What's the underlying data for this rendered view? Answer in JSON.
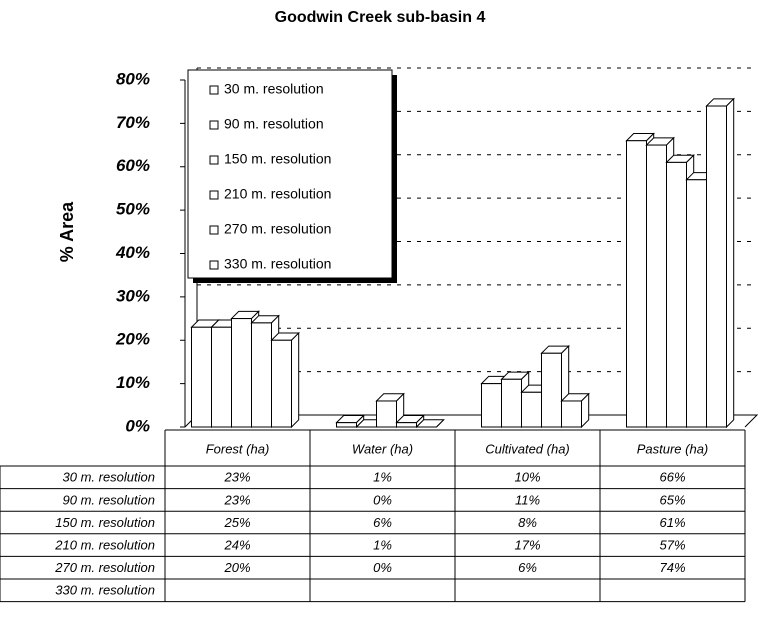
{
  "chart_data": {
    "type": "bar",
    "title": "Goodwin Creek sub-basin 4",
    "y_label": "% Area",
    "categories": [
      "Forest (ha)",
      "Water (ha)",
      "Cultivated (ha)",
      "Pasture (ha)"
    ],
    "series": [
      {
        "name": "30 m. resolution",
        "color": "#ffffff",
        "values": [
          23,
          1,
          10,
          66
        ],
        "value_labels": [
          "23%",
          "1%",
          "10%",
          "66%"
        ]
      },
      {
        "name": "90 m. resolution",
        "color": "#ffffff",
        "values": [
          23,
          0,
          11,
          65
        ],
        "value_labels": [
          "23%",
          "0%",
          "11%",
          "65%"
        ]
      },
      {
        "name": "150 m. resolution",
        "color": "#ffffff",
        "values": [
          25,
          6,
          8,
          61
        ],
        "value_labels": [
          "25%",
          "6%",
          "8%",
          "61%"
        ]
      },
      {
        "name": "210 m. resolution",
        "color": "#ffffff",
        "values": [
          24,
          1,
          17,
          57
        ],
        "value_labels": [
          "24%",
          "1%",
          "17%",
          "57%"
        ]
      },
      {
        "name": "270 m. resolution",
        "color": "#ffffff",
        "values": [
          20,
          0,
          6,
          74
        ],
        "value_labels": [
          "20%",
          "0%",
          "6%",
          "74%"
        ]
      },
      {
        "name": "330 m. resolution",
        "color": "#ffffff",
        "values": [
          null,
          null,
          null,
          null
        ],
        "value_labels": [
          null,
          null,
          null,
          null
        ]
      }
    ],
    "ylim": [
      0,
      80
    ],
    "yticks": [
      {
        "value": 0,
        "label": "0%"
      },
      {
        "value": 10,
        "label": "10%"
      },
      {
        "value": 20,
        "label": "20%"
      },
      {
        "value": 30,
        "label": "30%"
      },
      {
        "value": 40,
        "label": "40%"
      },
      {
        "value": 50,
        "label": "50%"
      },
      {
        "value": 60,
        "label": "60%"
      },
      {
        "value": 70,
        "label": "70%"
      },
      {
        "value": 80,
        "label": "80%"
      }
    ],
    "grid": true
  }
}
